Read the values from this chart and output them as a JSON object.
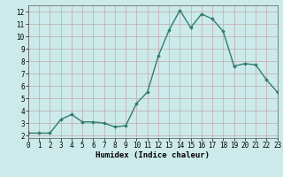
{
  "x": [
    0,
    1,
    2,
    3,
    4,
    5,
    6,
    7,
    8,
    9,
    10,
    11,
    12,
    13,
    14,
    15,
    16,
    17,
    18,
    19,
    20,
    21,
    22,
    23
  ],
  "y": [
    2.2,
    2.2,
    2.2,
    3.3,
    3.7,
    3.1,
    3.1,
    3.0,
    2.7,
    2.8,
    4.6,
    5.5,
    8.4,
    10.5,
    12.1,
    10.7,
    11.8,
    11.4,
    10.4,
    7.6,
    7.8,
    7.7,
    6.5,
    5.5
  ],
  "xlabel": "Humidex (Indice chaleur)",
  "line_color": "#2e7d6e",
  "marker": "D",
  "marker_size": 1.8,
  "linewidth": 1.0,
  "xlim": [
    0,
    23
  ],
  "ylim": [
    1.8,
    12.5
  ],
  "yticks": [
    2,
    3,
    4,
    5,
    6,
    7,
    8,
    9,
    10,
    11,
    12
  ],
  "xticks": [
    0,
    1,
    2,
    3,
    4,
    5,
    6,
    7,
    8,
    9,
    10,
    11,
    12,
    13,
    14,
    15,
    16,
    17,
    18,
    19,
    20,
    21,
    22,
    23
  ],
  "bg_color": "#cdeaea",
  "grid_color": "#c0aaaa",
  "tick_fontsize": 5.5,
  "label_fontsize": 6.5
}
